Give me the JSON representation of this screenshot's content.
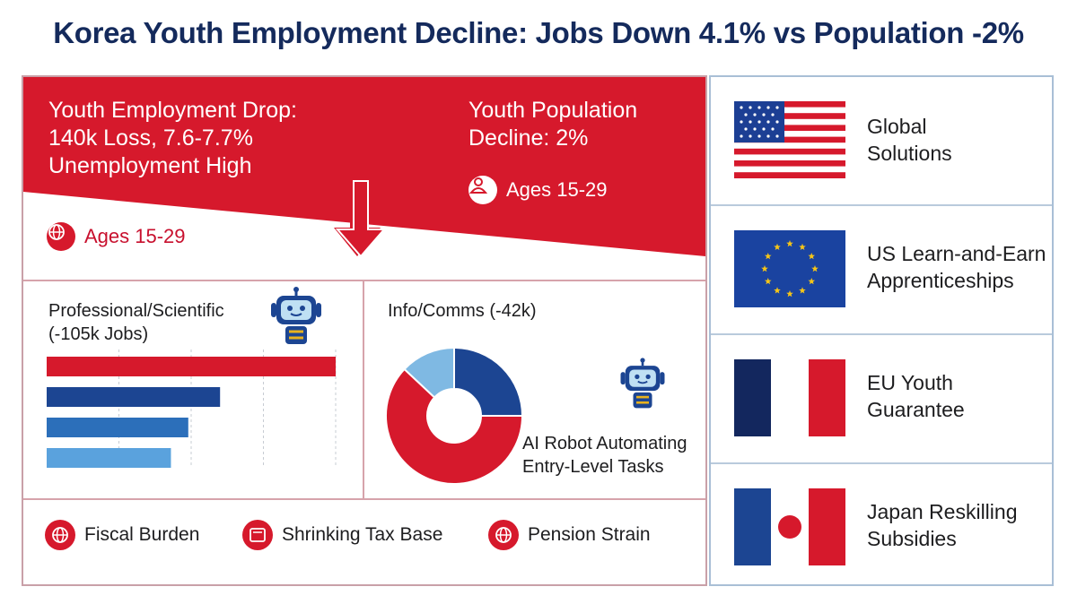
{
  "title": "Korea Youth Employment Decline: Jobs Down 4.1% vs Population -2%",
  "colors": {
    "red": "#d6192c",
    "navy": "#1c4592",
    "mid_blue": "#2c6fba",
    "light_blue": "#5aa2dd",
    "sky": "#7fb9e3"
  },
  "banner": {
    "left_text": [
      "Youth Employment Drop:",
      "140k Loss, 7.6-7.7%",
      "Unemployment High"
    ],
    "right_text": [
      "Youth Population",
      "Decline: 2%"
    ],
    "ages_right": "Ages 15-29",
    "ages_left": "Ages 15-29"
  },
  "panel_left": {
    "title": [
      "Professional/Scientific",
      "(-105k Jobs)"
    ],
    "icon": "robot-icon"
  },
  "panel_right": {
    "title": "Info/Comms (-42k)",
    "caption": [
      "AI Robot Automating",
      "Entry-Level Tasks"
    ],
    "icon": "robot-icon"
  },
  "chart_data": [
    {
      "type": "bar",
      "orientation": "horizontal",
      "values": [
        100,
        60,
        49,
        43
      ],
      "colors": [
        "#d6192c",
        "#1c4592",
        "#2c6fba",
        "#5aa2dd"
      ],
      "grid": true
    },
    {
      "type": "pie",
      "donut": true,
      "values": [
        62,
        25,
        13
      ],
      "colors": [
        "#d6192c",
        "#1c4592",
        "#7fb9e3"
      ]
    }
  ],
  "impacts": [
    {
      "label": "Fiscal Burden",
      "icon": "globe-icon"
    },
    {
      "label": "Shrinking Tax Base",
      "icon": "tablet-icon"
    },
    {
      "label": "Pension Strain",
      "icon": "globe-icon"
    }
  ],
  "policies": [
    {
      "label": [
        "Global",
        "Solutions"
      ],
      "flag": "us-flag"
    },
    {
      "label": [
        "US Learn-and-Earn",
        "Apprenticeships"
      ],
      "flag": "eu-flag"
    },
    {
      "label": [
        "EU Youth",
        "Guarantee"
      ],
      "flag": "france-flag"
    },
    {
      "label": [
        "Japan Reskilling",
        "Subsidies"
      ],
      "flag": "japan-style-flag"
    }
  ]
}
